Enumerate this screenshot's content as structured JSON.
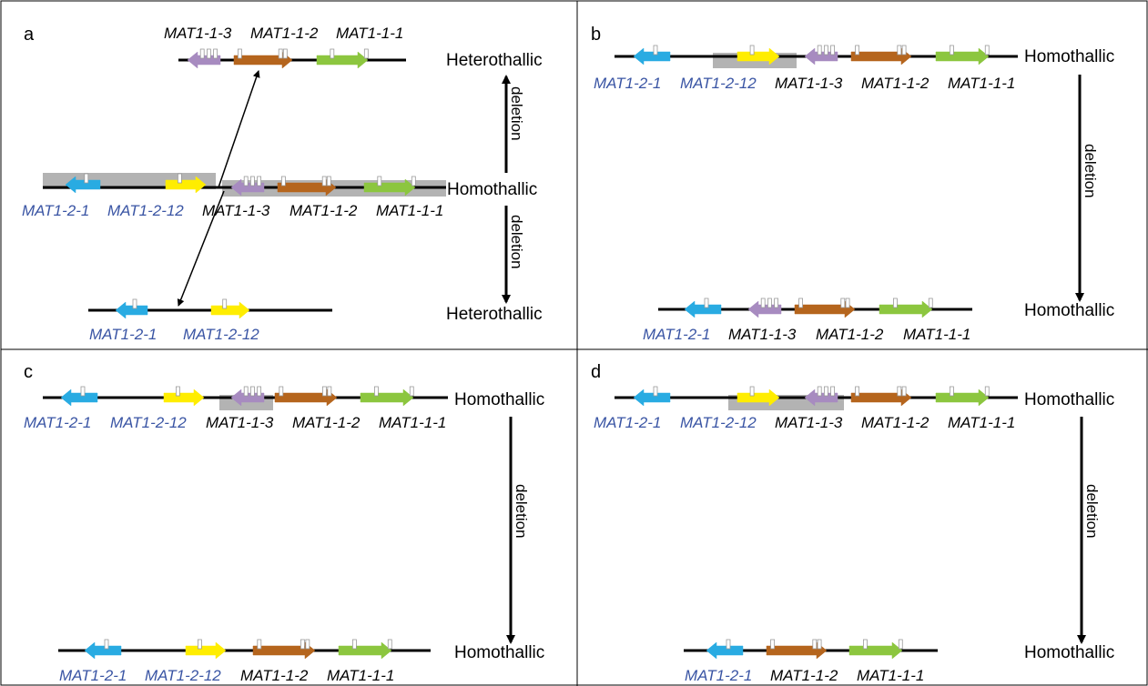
{
  "colors": {
    "mat121": "#29abe2",
    "mat1212": "#ffed00",
    "mat113": "#a78bc0",
    "mat112": "#b5651d",
    "mat111": "#8cc63f",
    "deletion_shade": "#a6a6a6",
    "blue_label": "#3a55a4"
  },
  "panels": [
    {
      "letter": "a",
      "rows": [
        {
          "labels": [
            "MAT1-1-3",
            "MAT1-1-2",
            "MAT1-1-1"
          ],
          "status": "Heterothallic"
        },
        {
          "labels": [
            "MAT1-2-1",
            "MAT1-2-12",
            "MAT1-1-3",
            "MAT1-1-2",
            "MAT1-1-1"
          ],
          "status": "Homothallic"
        },
        {
          "labels": [
            "MAT1-2-1",
            "MAT1-2-12"
          ],
          "status": "Heterothallic"
        }
      ],
      "arrow_label_top": "deletion",
      "arrow_label_bottom": "deletion"
    },
    {
      "letter": "b",
      "rows": [
        {
          "labels": [
            "MAT1-2-1",
            "MAT1-2-12",
            "MAT1-1-3",
            "MAT1-1-2",
            "MAT1-1-1"
          ],
          "status": "Homothallic"
        },
        {
          "labels": [
            "MAT1-2-1",
            "MAT1-1-3",
            "MAT1-1-2",
            "MAT1-1-1"
          ],
          "status": "Homothallic"
        }
      ],
      "arrow_label": "deletion"
    },
    {
      "letter": "c",
      "rows": [
        {
          "labels": [
            "MAT1-2-1",
            "MAT1-2-12",
            "MAT1-1-3",
            "MAT1-1-2",
            "MAT1-1-1"
          ],
          "status": "Homothallic"
        },
        {
          "labels": [
            "MAT1-2-1",
            "MAT1-2-12",
            "MAT1-1-2",
            "MAT1-1-1"
          ],
          "status": "Homothallic"
        }
      ],
      "arrow_label": "deletion"
    },
    {
      "letter": "d",
      "rows": [
        {
          "labels": [
            "MAT1-2-1",
            "MAT1-2-12",
            "MAT1-1-3",
            "MAT1-1-2",
            "MAT1-1-1"
          ],
          "status": "Homothallic"
        },
        {
          "labels": [
            "MAT1-2-1",
            "MAT1-1-2",
            "MAT1-1-1"
          ],
          "status": "Homothallic"
        }
      ],
      "arrow_label": "deletion"
    }
  ]
}
